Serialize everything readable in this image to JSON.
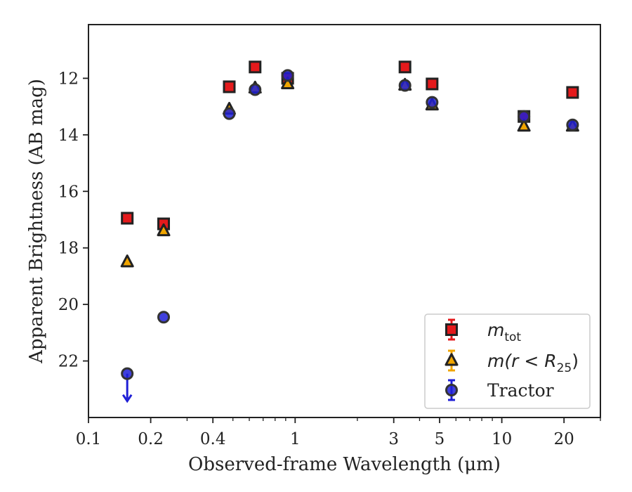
{
  "chart_data": {
    "type": "scatter",
    "xscale": "log",
    "xlim": [
      0.1,
      30
    ],
    "ylim": [
      24,
      10.1
    ],
    "y_inverted": true,
    "xlabel": "Observed-frame Wavelength (μm)",
    "ylabel": "Apparent Brightness (AB mag)",
    "xticks": [
      {
        "value": 0.1,
        "label": "0.1"
      },
      {
        "value": 0.2,
        "label": "0.2"
      },
      {
        "value": 0.4,
        "label": "0.4"
      },
      {
        "value": 1,
        "label": "1"
      },
      {
        "value": 3,
        "label": "3"
      },
      {
        "value": 5,
        "label": "5"
      },
      {
        "value": 10,
        "label": "10"
      },
      {
        "value": 20,
        "label": "20"
      }
    ],
    "yticks": [
      {
        "value": 12,
        "label": "12"
      },
      {
        "value": 14,
        "label": "14"
      },
      {
        "value": 16,
        "label": "16"
      },
      {
        "value": 18,
        "label": "18"
      },
      {
        "value": 20,
        "label": "20"
      },
      {
        "value": 22,
        "label": "22"
      }
    ],
    "grid": false,
    "legend_position": "bottom-right",
    "series": [
      {
        "name": "m_tot",
        "legend_main": "m",
        "legend_sub": "tot",
        "marker": "square",
        "color": "#e41a1c",
        "edge": "#222222",
        "points": [
          {
            "x": 0.154,
            "y": 16.95
          },
          {
            "x": 0.231,
            "y": 17.15
          },
          {
            "x": 0.48,
            "y": 12.3
          },
          {
            "x": 0.64,
            "y": 11.6
          },
          {
            "x": 0.92,
            "y": 12.0
          },
          {
            "x": 3.4,
            "y": 11.6
          },
          {
            "x": 4.6,
            "y": 12.2
          },
          {
            "x": 12.8,
            "y": 13.35
          },
          {
            "x": 22.0,
            "y": 12.5
          }
        ]
      },
      {
        "name": "m(r < R25)",
        "legend_main": "m(r < R",
        "legend_sub": "25",
        "legend_tail": ")",
        "marker": "triangle",
        "color": "#f0a500",
        "edge": "#222222",
        "points": [
          {
            "x": 0.154,
            "y": 18.5
          },
          {
            "x": 0.231,
            "y": 17.4
          },
          {
            "x": 0.48,
            "y": 13.1
          },
          {
            "x": 0.64,
            "y": 12.35
          },
          {
            "x": 0.92,
            "y": 12.2
          },
          {
            "x": 3.4,
            "y": 12.25
          },
          {
            "x": 4.6,
            "y": 12.95
          },
          {
            "x": 12.8,
            "y": 13.7
          },
          {
            "x": 22.0,
            "y": 13.7
          }
        ]
      },
      {
        "name": "Tractor",
        "legend_main": "Tractor",
        "marker": "circle",
        "color": "#1f1fd6",
        "edge": "#333333",
        "upper_limit_at_index": 0,
        "points": [
          {
            "x": 0.154,
            "y": 22.45
          },
          {
            "x": 0.231,
            "y": 20.45
          },
          {
            "x": 0.48,
            "y": 13.25
          },
          {
            "x": 0.64,
            "y": 12.4
          },
          {
            "x": 0.92,
            "y": 11.9
          },
          {
            "x": 3.4,
            "y": 12.25
          },
          {
            "x": 4.6,
            "y": 12.85
          },
          {
            "x": 12.8,
            "y": 13.35
          },
          {
            "x": 22.0,
            "y": 13.65
          }
        ]
      }
    ]
  }
}
